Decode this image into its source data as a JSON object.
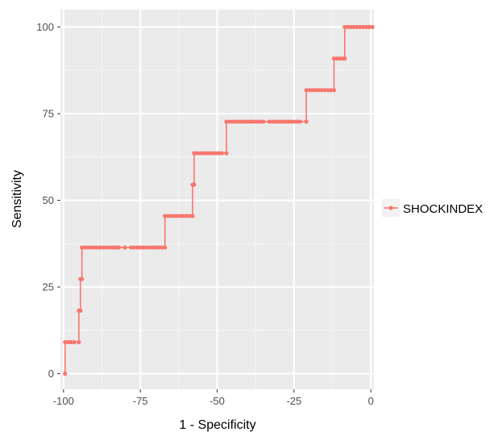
{
  "chart_data": {
    "type": "line",
    "title": "",
    "xlabel": "1 - Specificity",
    "ylabel": "Sensitivity",
    "xlim": [
      -101,
      1
    ],
    "ylim": [
      -4.5,
      105
    ],
    "x_ticks": [
      -100,
      -75,
      -50,
      -25,
      0
    ],
    "y_ticks": [
      0,
      25,
      50,
      75,
      100
    ],
    "x_tick_labels": [
      "-100",
      "-75",
      "-50",
      "-25",
      "0"
    ],
    "y_tick_labels": [
      "0",
      "25",
      "50",
      "75",
      "100"
    ],
    "grid": true,
    "legend_position": "right",
    "colors": {
      "series": "#f8766d",
      "panel_background": "#ebebeb",
      "grid_major": "#ffffff",
      "grid_minor": "#f5f5f5"
    },
    "series": [
      {
        "name": "SHOCKINDEX",
        "points": [
          [
            -99.5,
            0
          ],
          [
            -99.5,
            9.1
          ],
          [
            -98.5,
            9.1
          ],
          [
            -97.5,
            9.1
          ],
          [
            -96.5,
            9.1
          ],
          [
            -95,
            9.1
          ],
          [
            -95,
            18.2
          ],
          [
            -94.5,
            18.2
          ],
          [
            -94.5,
            27.3
          ],
          [
            -94,
            27.3
          ],
          [
            -94,
            36.4
          ],
          [
            -93,
            36.4
          ],
          [
            -92,
            36.4
          ],
          [
            -91,
            36.4
          ],
          [
            -90,
            36.4
          ],
          [
            -89,
            36.4
          ],
          [
            -88,
            36.4
          ],
          [
            -87,
            36.4
          ],
          [
            -86,
            36.4
          ],
          [
            -85,
            36.4
          ],
          [
            -84,
            36.4
          ],
          [
            -83,
            36.4
          ],
          [
            -82,
            36.4
          ],
          [
            -80,
            36.4
          ],
          [
            -78,
            36.4
          ],
          [
            -77,
            36.4
          ],
          [
            -76,
            36.4
          ],
          [
            -75,
            36.4
          ],
          [
            -74,
            36.4
          ],
          [
            -73,
            36.4
          ],
          [
            -72,
            36.4
          ],
          [
            -71,
            36.4
          ],
          [
            -70,
            36.4
          ],
          [
            -69,
            36.4
          ],
          [
            -68,
            36.4
          ],
          [
            -67,
            36.4
          ],
          [
            -67,
            45.5
          ],
          [
            -66,
            45.5
          ],
          [
            -65,
            45.5
          ],
          [
            -64,
            45.5
          ],
          [
            -63,
            45.5
          ],
          [
            -62,
            45.5
          ],
          [
            -61,
            45.5
          ],
          [
            -60,
            45.5
          ],
          [
            -59,
            45.5
          ],
          [
            -58,
            45.5
          ],
          [
            -58,
            54.5
          ],
          [
            -57.5,
            54.5
          ],
          [
            -57.5,
            63.6
          ],
          [
            -56.5,
            63.6
          ],
          [
            -55.5,
            63.6
          ],
          [
            -54.5,
            63.6
          ],
          [
            -53.5,
            63.6
          ],
          [
            -52.5,
            63.6
          ],
          [
            -51.5,
            63.6
          ],
          [
            -50.5,
            63.6
          ],
          [
            -49.5,
            63.6
          ],
          [
            -48.5,
            63.6
          ],
          [
            -47,
            63.6
          ],
          [
            -47,
            72.7
          ],
          [
            -46,
            72.7
          ],
          [
            -45,
            72.7
          ],
          [
            -44,
            72.7
          ],
          [
            -43,
            72.7
          ],
          [
            -42,
            72.7
          ],
          [
            -41,
            72.7
          ],
          [
            -40,
            72.7
          ],
          [
            -39,
            72.7
          ],
          [
            -38,
            72.7
          ],
          [
            -37,
            72.7
          ],
          [
            -36,
            72.7
          ],
          [
            -35,
            72.7
          ],
          [
            -33,
            72.7
          ],
          [
            -32,
            72.7
          ],
          [
            -31,
            72.7
          ],
          [
            -30,
            72.7
          ],
          [
            -29,
            72.7
          ],
          [
            -28,
            72.7
          ],
          [
            -27,
            72.7
          ],
          [
            -26,
            72.7
          ],
          [
            -25,
            72.7
          ],
          [
            -24,
            72.7
          ],
          [
            -23,
            72.7
          ],
          [
            -21,
            72.7
          ],
          [
            -21,
            81.8
          ],
          [
            -20,
            81.8
          ],
          [
            -19,
            81.8
          ],
          [
            -18,
            81.8
          ],
          [
            -17,
            81.8
          ],
          [
            -16,
            81.8
          ],
          [
            -15,
            81.8
          ],
          [
            -14,
            81.8
          ],
          [
            -13,
            81.8
          ],
          [
            -12,
            81.8
          ],
          [
            -12,
            90.9
          ],
          [
            -11,
            90.9
          ],
          [
            -10,
            90.9
          ],
          [
            -9,
            90.9
          ],
          [
            -8.5,
            90.9
          ],
          [
            -8.5,
            100
          ],
          [
            -7.5,
            100
          ],
          [
            -6.5,
            100
          ],
          [
            -5.5,
            100
          ],
          [
            -4.5,
            100
          ],
          [
            -3.5,
            100
          ],
          [
            -2.5,
            100
          ],
          [
            -1.5,
            100
          ],
          [
            -0.5,
            100
          ],
          [
            0.5,
            100
          ]
        ]
      }
    ]
  }
}
